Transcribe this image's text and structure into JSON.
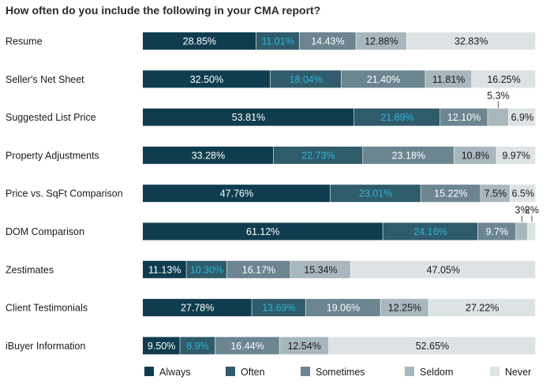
{
  "chart_data": {
    "type": "bar",
    "stacked": true,
    "orientation": "horizontal",
    "title": "How often do you include the following in your CMA report?",
    "categories": [
      "Resume",
      "Seller's Net Sheet",
      "Suggested List Price",
      "Property Adjustments",
      "Price vs. SqFt Comparison",
      "DOM Comparison",
      "Zestimates",
      "Client Testimonials",
      "iBuyer Information"
    ],
    "series": [
      {
        "name": "Always",
        "color": "#0f3d4f",
        "text_color": "#ffffff",
        "values": [
          28.85,
          32.5,
          53.81,
          33.28,
          47.76,
          61.12,
          11.13,
          27.78,
          9.5
        ],
        "labels": [
          "28.85%",
          "32.50%",
          "53.81%",
          "33.28%",
          "47.76%",
          "61.12%",
          "11.13%",
          "27.78%",
          "9.50%"
        ]
      },
      {
        "name": "Often",
        "color": "#2f5b6b",
        "text_color": "#2eb4d6",
        "values": [
          11.01,
          18.04,
          21.89,
          22.73,
          23.01,
          24.16,
          10.3,
          13.69,
          8.9
        ],
        "labels": [
          "11.01%",
          "18.04%",
          "21.89%",
          "22.73%",
          "23.01%",
          "24.16%",
          "10.30%",
          "13.69%",
          "8.9%"
        ]
      },
      {
        "name": "Sometimes",
        "color": "#6b8591",
        "text_color": "#ffffff",
        "values": [
          14.43,
          21.4,
          12.1,
          23.18,
          15.22,
          9.7,
          16.17,
          19.06,
          16.44
        ],
        "labels": [
          "14.43%",
          "21.40%",
          "12.10%",
          "23.18%",
          "15.22%",
          "9.7%",
          "16.17%",
          "19.06%",
          "16.44%"
        ]
      },
      {
        "name": "Seldom",
        "color": "#a8b7bd",
        "text_color": "#1a1a1a",
        "values": [
          12.88,
          11.81,
          5.3,
          10.8,
          7.5,
          3,
          15.34,
          12.25,
          12.54
        ],
        "labels": [
          "12.88%",
          "11.81%",
          "5.3%",
          "10.8%",
          "7.5%",
          "3%",
          "15.34%",
          "12.25%",
          "12.54%"
        ]
      },
      {
        "name": "Never",
        "color": "#dde2e5",
        "text_color": "#1a1a1a",
        "values": [
          32.83,
          16.25,
          6.9,
          9.97,
          6.5,
          2,
          47.05,
          27.22,
          52.65
        ],
        "labels": [
          "32.83%",
          "16.25%",
          "6.9%",
          "9.97%",
          "6.5%",
          "2%",
          "47.05%",
          "27.22%",
          "52.65%"
        ]
      }
    ],
    "unit": "%",
    "legend_position": "bottom",
    "grid": false
  }
}
